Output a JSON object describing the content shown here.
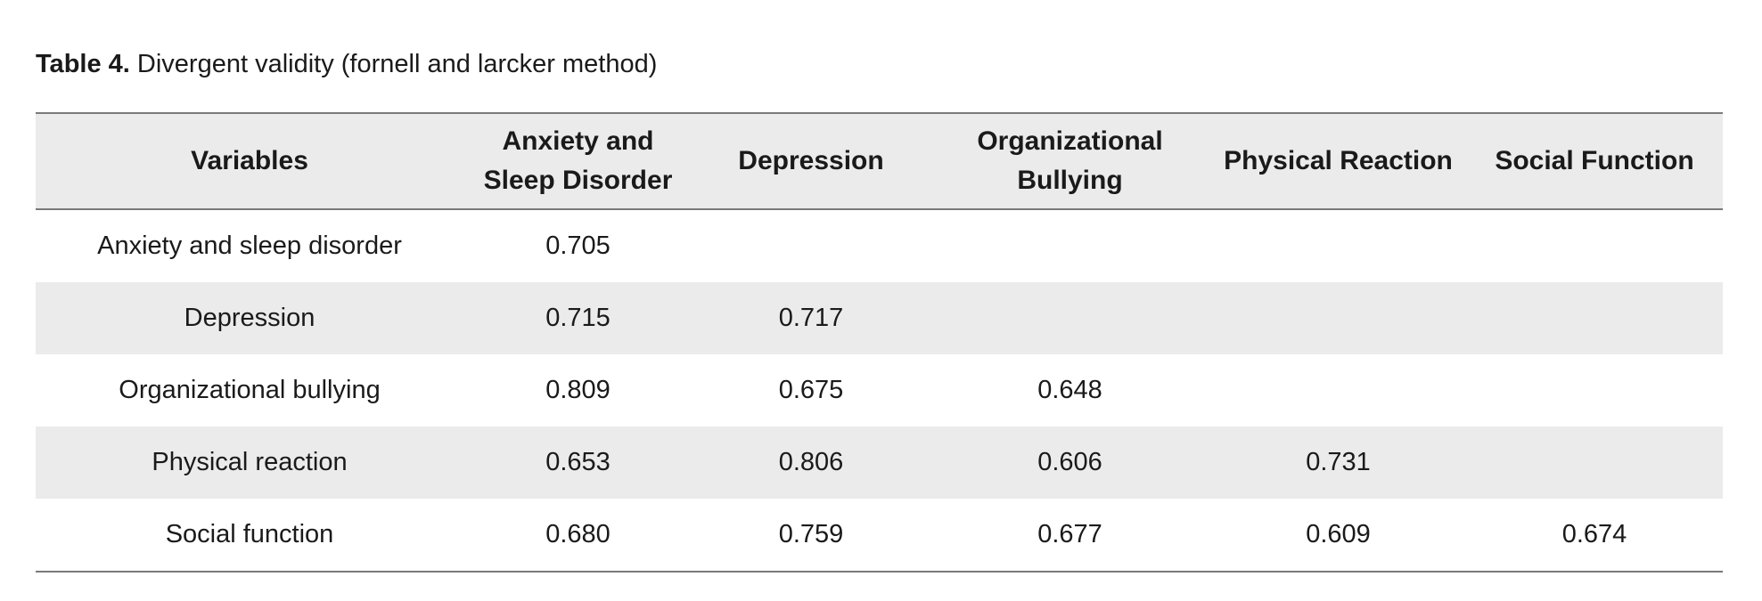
{
  "caption": {
    "label": "Table 4.",
    "text": "Divergent validity (fornell and larcker method)"
  },
  "table": {
    "headers": [
      "Variables",
      "Anxiety and Sleep Disorder",
      "Depression",
      "Organizational Bullying",
      "Physical Reaction",
      "Social Function"
    ],
    "rows": [
      [
        "Anxiety and sleep disorder",
        "0.705",
        "",
        "",
        "",
        ""
      ],
      [
        "Depression",
        "0.715",
        "0.717",
        "",
        "",
        ""
      ],
      [
        "Organizational bullying",
        "0.809",
        "0.675",
        "0.648",
        "",
        ""
      ],
      [
        "Physical reaction",
        "0.653",
        "0.806",
        "0.606",
        "0.731",
        ""
      ],
      [
        "Social function",
        "0.680",
        "0.759",
        "0.677",
        "0.609",
        "0.674"
      ]
    ]
  }
}
